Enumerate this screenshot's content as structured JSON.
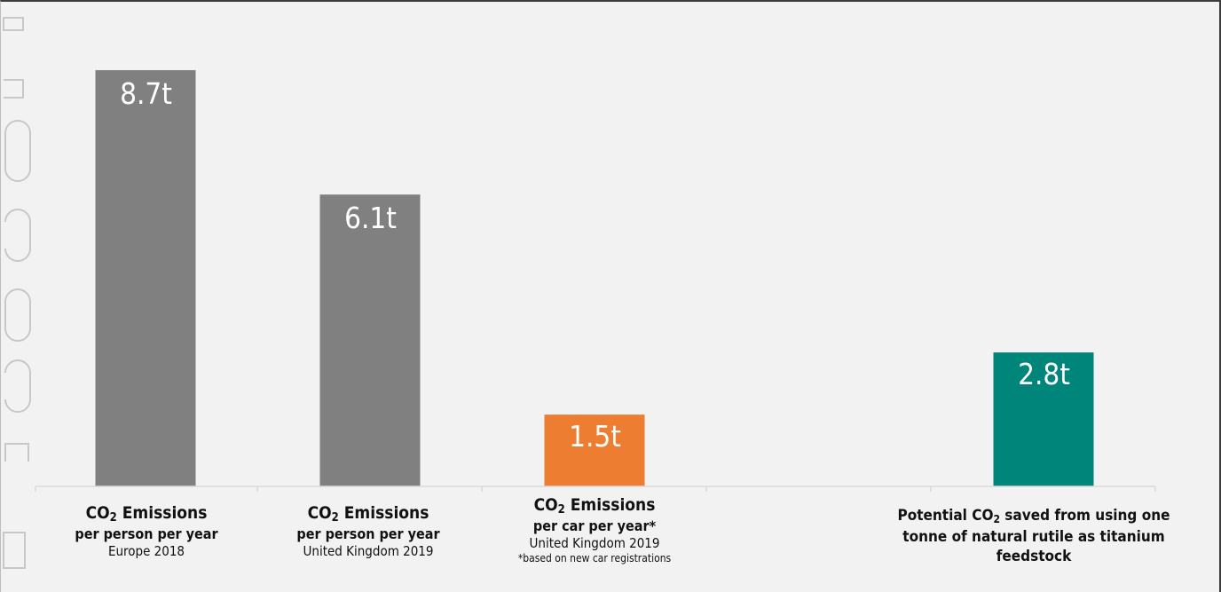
{
  "colors": {
    "background": "#f2f2f2",
    "bar_gray": "#808080",
    "bar_orange": "#ed7d31",
    "bar_teal": "#00857b",
    "axis": "#d9d9d9"
  },
  "chart_data": {
    "type": "bar",
    "categories": [
      "CO2 Emissions per person per year Europe 2018",
      "CO2 Emissions per person per year United Kingdom 2019",
      "CO2 Emissions per car per year* United Kingdom 2019",
      "",
      "Potential CO2 saved from using one tonne of natural rutile as titanium feedstock"
    ],
    "values": [
      8.7,
      6.1,
      1.5,
      null,
      2.8
    ],
    "value_labels": [
      "8.7t",
      "6.1t",
      "1.5t",
      "",
      "2.8t"
    ],
    "bar_colors": [
      "#808080",
      "#808080",
      "#ed7d31",
      null,
      "#00857b"
    ],
    "ylim": [
      0,
      10
    ],
    "grid": false,
    "title": "",
    "xlabel": "",
    "ylabel": ""
  },
  "labels": [
    {
      "title": "CO",
      "title_sub": "2",
      "title_rest": " Emissions",
      "line2": "per person per year",
      "line3": "Europe 2018"
    },
    {
      "title": "CO",
      "title_sub": "2",
      "title_rest": " Emissions",
      "line2": "per person per year",
      "line3": "United Kingdom 2019"
    },
    {
      "title": "CO",
      "title_sub": "2",
      "title_rest": " Emissions",
      "line2": "per car per year*",
      "line3": "United Kingdom 2019",
      "footnote": "*based on new car registrations"
    },
    {
      "pre": "Potential CO",
      "sub": "2",
      "post": " saved from using one",
      "line2": "tonne of natural rutile as titanium",
      "line3": "feedstock"
    }
  ]
}
